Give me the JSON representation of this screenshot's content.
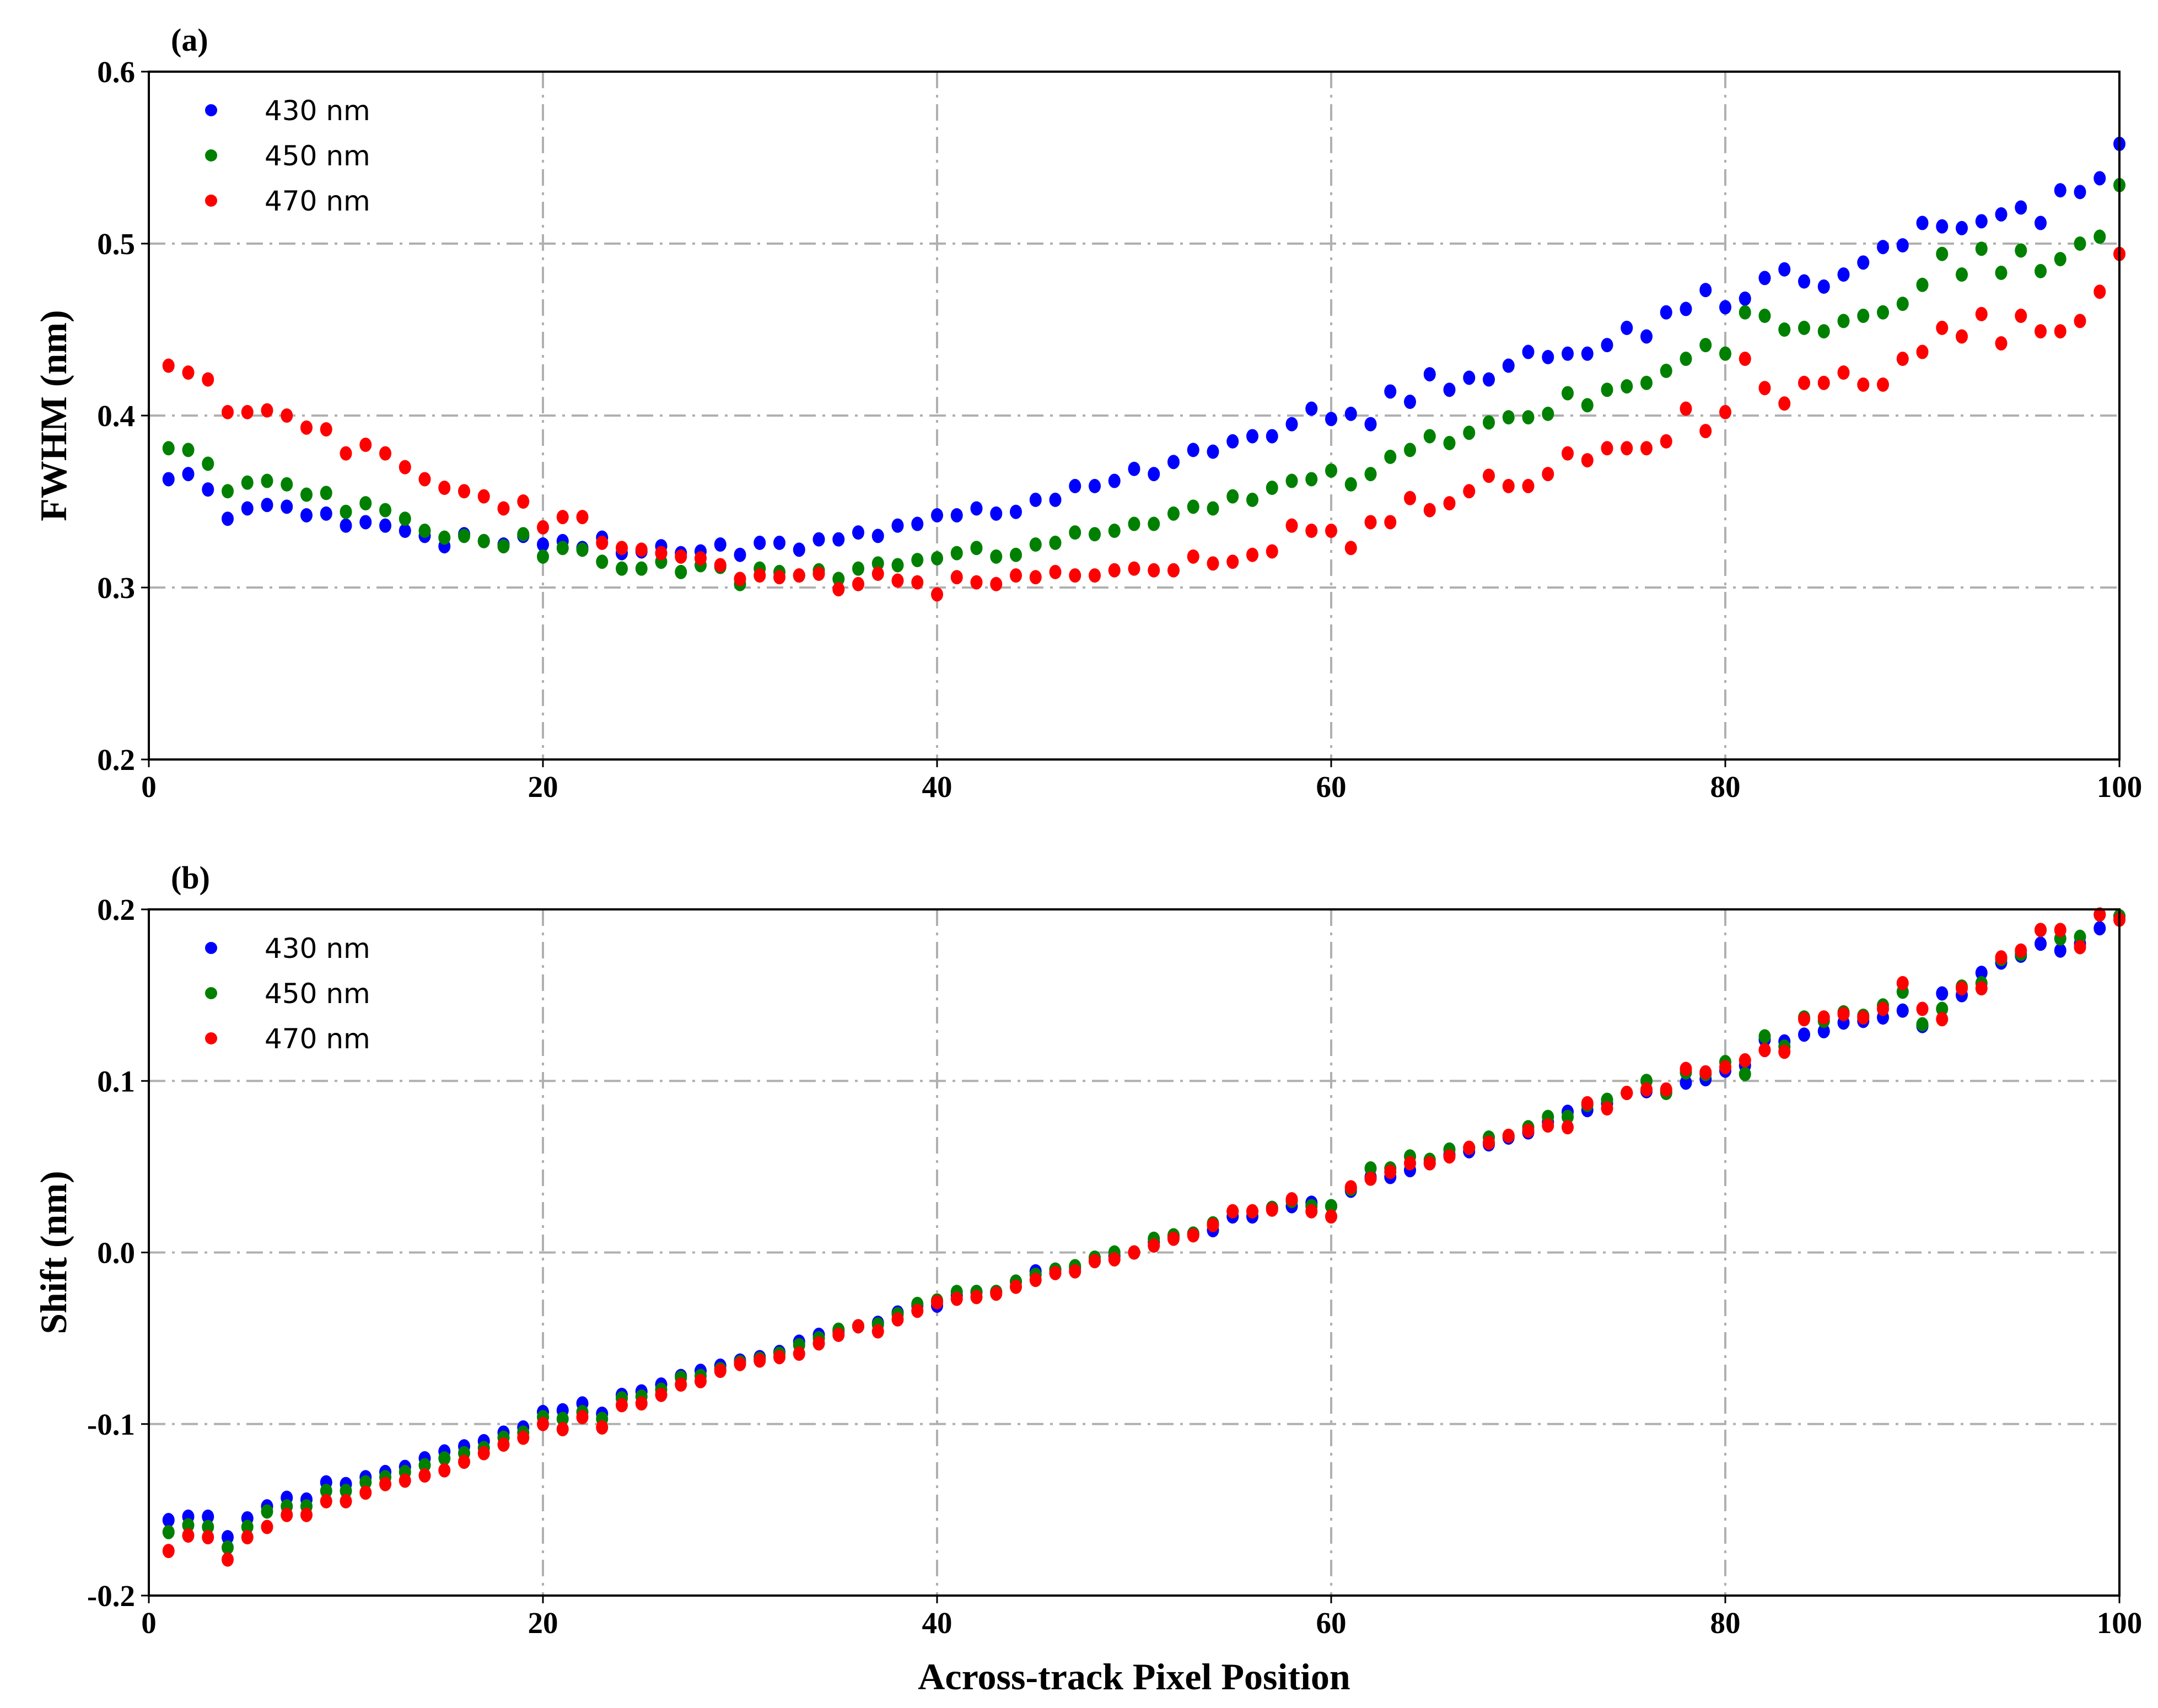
{
  "colors": {
    "430 nm": "#0000ff",
    "450 nm": "#008000",
    "470 nm": "#ff0000",
    "grid": "#b0b0b0"
  },
  "chart_data": [
    {
      "type": "scatter",
      "panel_label": "(a)",
      "xlabel": "",
      "ylabel": "FWHM (nm)",
      "xlim": [
        0,
        100
      ],
      "ylim": [
        0.2,
        0.6
      ],
      "xticks": [
        "0",
        "20",
        "40",
        "60",
        "80",
        "100"
      ],
      "yticks": [
        "0.2",
        "0.3",
        "0.4",
        "0.5",
        "0.6"
      ],
      "grid": true,
      "grid_style": "dash-dot",
      "legend": "top-left",
      "x_start": 1,
      "x_step": 1,
      "series": [
        {
          "name": "430 nm",
          "values": [
            0.363,
            0.366,
            0.357,
            0.34,
            0.346,
            0.348,
            0.347,
            0.342,
            0.343,
            0.336,
            0.338,
            0.336,
            0.333,
            0.33,
            0.324,
            0.331,
            0.327,
            0.325,
            0.33,
            0.325,
            0.327,
            0.323,
            0.329,
            0.32,
            0.321,
            0.324,
            0.32,
            0.321,
            0.325,
            0.319,
            0.326,
            0.326,
            0.322,
            0.328,
            0.328,
            0.332,
            0.33,
            0.336,
            0.337,
            0.342,
            0.342,
            0.346,
            0.343,
            0.344,
            0.351,
            0.351,
            0.359,
            0.359,
            0.362,
            0.369,
            0.366,
            0.373,
            0.38,
            0.379,
            0.385,
            0.388,
            0.388,
            0.395,
            0.404,
            0.398,
            0.401,
            0.395,
            0.414,
            0.408,
            0.424,
            0.415,
            0.422,
            0.421,
            0.429,
            0.437,
            0.434,
            0.436,
            0.436,
            0.441,
            0.451,
            0.446,
            0.46,
            0.462,
            0.473,
            0.463,
            0.468,
            0.48,
            0.485,
            0.478,
            0.475,
            0.482,
            0.489,
            0.498,
            0.499,
            0.512,
            0.51,
            0.509,
            0.513,
            0.517,
            0.521,
            0.512,
            0.531,
            0.53,
            0.538,
            0.558
          ]
        },
        {
          "name": "450 nm",
          "values": [
            0.381,
            0.38,
            0.372,
            0.356,
            0.361,
            0.362,
            0.36,
            0.354,
            0.355,
            0.344,
            0.349,
            0.345,
            0.34,
            0.333,
            0.329,
            0.33,
            0.327,
            0.324,
            0.331,
            0.318,
            0.323,
            0.322,
            0.315,
            0.311,
            0.311,
            0.315,
            0.309,
            0.313,
            0.312,
            0.302,
            0.311,
            0.309,
            0.307,
            0.31,
            0.305,
            0.311,
            0.314,
            0.313,
            0.316,
            0.317,
            0.32,
            0.323,
            0.318,
            0.319,
            0.325,
            0.326,
            0.332,
            0.331,
            0.333,
            0.337,
            0.337,
            0.343,
            0.347,
            0.346,
            0.353,
            0.351,
            0.358,
            0.362,
            0.363,
            0.368,
            0.36,
            0.366,
            0.376,
            0.38,
            0.388,
            0.384,
            0.39,
            0.396,
            0.399,
            0.399,
            0.401,
            0.413,
            0.406,
            0.415,
            0.417,
            0.419,
            0.426,
            0.433,
            0.441,
            0.436,
            0.46,
            0.458,
            0.45,
            0.451,
            0.449,
            0.455,
            0.458,
            0.46,
            0.465,
            0.476,
            0.494,
            0.482,
            0.497,
            0.483,
            0.496,
            0.484,
            0.491,
            0.5,
            0.504,
            0.534
          ]
        },
        {
          "name": "470 nm",
          "values": [
            0.429,
            0.425,
            0.421,
            0.402,
            0.402,
            0.403,
            0.4,
            0.393,
            0.392,
            0.378,
            0.383,
            0.378,
            0.37,
            0.363,
            0.358,
            0.356,
            0.353,
            0.346,
            0.35,
            0.335,
            0.341,
            0.341,
            0.326,
            0.323,
            0.322,
            0.32,
            0.318,
            0.317,
            0.313,
            0.305,
            0.307,
            0.306,
            0.307,
            0.308,
            0.299,
            0.302,
            0.308,
            0.304,
            0.303,
            0.296,
            0.306,
            0.303,
            0.302,
            0.307,
            0.306,
            0.309,
            0.307,
            0.307,
            0.31,
            0.311,
            0.31,
            0.31,
            0.318,
            0.314,
            0.315,
            0.319,
            0.321,
            0.336,
            0.333,
            0.333,
            0.323,
            0.338,
            0.338,
            0.352,
            0.345,
            0.349,
            0.356,
            0.365,
            0.359,
            0.359,
            0.366,
            0.378,
            0.374,
            0.381,
            0.381,
            0.381,
            0.385,
            0.404,
            0.391,
            0.402,
            0.433,
            0.416,
            0.407,
            0.419,
            0.419,
            0.425,
            0.418,
            0.418,
            0.433,
            0.437,
            0.451,
            0.446,
            0.459,
            0.442,
            0.458,
            0.449,
            0.449,
            0.455,
            0.472,
            0.494
          ]
        }
      ]
    },
    {
      "type": "scatter",
      "panel_label": "(b)",
      "xlabel": "Across-track Pixel Position",
      "ylabel": "Shift (nm)",
      "xlim": [
        0,
        100
      ],
      "ylim": [
        -0.2,
        0.2
      ],
      "xticks": [
        "0",
        "20",
        "40",
        "60",
        "80",
        "100"
      ],
      "yticks": [
        "-0.2",
        "-0.1",
        "0.0",
        "0.1",
        "0.2"
      ],
      "grid": true,
      "grid_style": "dash-dot",
      "legend": "top-left",
      "x_start": 1,
      "x_step": 1,
      "series": [
        {
          "name": "430 nm",
          "values": [
            -0.156,
            -0.154,
            -0.154,
            -0.166,
            -0.155,
            -0.148,
            -0.143,
            -0.144,
            -0.134,
            -0.135,
            -0.131,
            -0.128,
            -0.125,
            -0.12,
            -0.116,
            -0.113,
            -0.11,
            -0.105,
            -0.102,
            -0.093,
            -0.092,
            -0.088,
            -0.094,
            -0.083,
            -0.081,
            -0.077,
            -0.072,
            -0.069,
            -0.066,
            -0.063,
            -0.061,
            -0.058,
            -0.052,
            -0.048,
            -0.046,
            -0.043,
            -0.041,
            -0.035,
            -0.031,
            -0.031,
            -0.025,
            -0.023,
            -0.023,
            -0.017,
            -0.011,
            -0.01,
            -0.009,
            -0.005,
            -0.002,
            0.0,
            0.006,
            0.009,
            0.011,
            0.013,
            0.021,
            0.021,
            0.026,
            0.027,
            0.029,
            0.027,
            0.036,
            0.044,
            0.044,
            0.048,
            0.052,
            0.057,
            0.059,
            0.063,
            0.067,
            0.07,
            0.076,
            0.082,
            0.083,
            0.087,
            0.093,
            0.094,
            0.094,
            0.099,
            0.101,
            0.106,
            0.109,
            0.124,
            0.123,
            0.127,
            0.129,
            0.134,
            0.135,
            0.137,
            0.141,
            0.132,
            0.151,
            0.15,
            0.163,
            0.169,
            0.173,
            0.18,
            0.176,
            0.18,
            0.189,
            0.196
          ]
        },
        {
          "name": "450 nm",
          "values": [
            -0.163,
            -0.159,
            -0.16,
            -0.172,
            -0.16,
            -0.151,
            -0.148,
            -0.148,
            -0.139,
            -0.139,
            -0.134,
            -0.131,
            -0.128,
            -0.124,
            -0.12,
            -0.117,
            -0.114,
            -0.108,
            -0.105,
            -0.096,
            -0.097,
            -0.093,
            -0.097,
            -0.085,
            -0.084,
            -0.08,
            -0.073,
            -0.072,
            -0.068,
            -0.064,
            -0.062,
            -0.059,
            -0.054,
            -0.05,
            -0.045,
            -0.043,
            -0.042,
            -0.036,
            -0.03,
            -0.028,
            -0.023,
            -0.023,
            -0.023,
            -0.017,
            -0.013,
            -0.01,
            -0.008,
            -0.003,
            0.0,
            0.0,
            0.008,
            0.01,
            0.011,
            0.017,
            0.024,
            0.024,
            0.026,
            0.03,
            0.027,
            0.027,
            0.037,
            0.049,
            0.049,
            0.056,
            0.054,
            0.06,
            0.061,
            0.067,
            0.068,
            0.073,
            0.079,
            0.079,
            0.086,
            0.089,
            0.093,
            0.1,
            0.093,
            0.105,
            0.104,
            0.111,
            0.104,
            0.126,
            0.12,
            0.137,
            0.135,
            0.14,
            0.138,
            0.144,
            0.152,
            0.133,
            0.142,
            0.155,
            0.157,
            0.171,
            0.174,
            0.188,
            0.183,
            0.184,
            0.197,
            0.196
          ]
        },
        {
          "name": "470 nm",
          "values": [
            -0.174,
            -0.165,
            -0.166,
            -0.179,
            -0.166,
            -0.16,
            -0.153,
            -0.153,
            -0.145,
            -0.145,
            -0.14,
            -0.135,
            -0.133,
            -0.13,
            -0.127,
            -0.122,
            -0.117,
            -0.112,
            -0.108,
            -0.1,
            -0.103,
            -0.096,
            -0.102,
            -0.089,
            -0.088,
            -0.083,
            -0.077,
            -0.075,
            -0.069,
            -0.065,
            -0.063,
            -0.061,
            -0.059,
            -0.053,
            -0.048,
            -0.043,
            -0.046,
            -0.039,
            -0.034,
            -0.029,
            -0.027,
            -0.026,
            -0.024,
            -0.02,
            -0.016,
            -0.012,
            -0.011,
            -0.005,
            -0.004,
            0.0,
            0.004,
            0.008,
            0.01,
            0.016,
            0.024,
            0.024,
            0.025,
            0.031,
            0.024,
            0.021,
            0.038,
            0.043,
            0.047,
            0.052,
            0.052,
            0.056,
            0.061,
            0.064,
            0.068,
            0.071,
            0.074,
            0.073,
            0.087,
            0.084,
            0.093,
            0.095,
            0.095,
            0.107,
            0.105,
            0.108,
            0.112,
            0.118,
            0.117,
            0.136,
            0.137,
            0.139,
            0.137,
            0.142,
            0.157,
            0.142,
            0.136,
            0.154,
            0.154,
            0.172,
            0.176,
            0.188,
            0.188,
            0.178,
            0.197,
            0.194
          ]
        }
      ]
    }
  ]
}
